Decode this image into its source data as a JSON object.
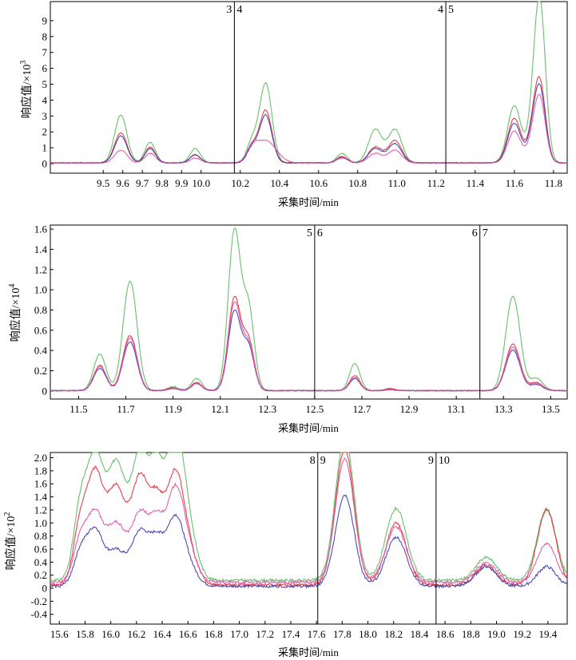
{
  "chart_data": [
    {
      "type": "line",
      "panel": "top",
      "xlabel": "采集时间/min",
      "ylabel_main": "响应值/×10",
      "ylabel_exp": "3",
      "xlim": [
        9.23,
        11.87
      ],
      "ylim": [
        -0.6,
        10.2
      ],
      "xticks": [
        "9.5",
        "9.6",
        "9.7",
        "9.8",
        "9.9",
        "10.0",
        "10.2",
        "10.4",
        "10.6",
        "10.8",
        "11.0",
        "11.2",
        "11.4",
        "11.6",
        "11.8"
      ],
      "yticks": [
        "0",
        "1",
        "2",
        "3",
        "4",
        "5",
        "6",
        "7",
        "8",
        "9"
      ],
      "segments": [
        {
          "x": 10.17,
          "label_left": "3",
          "label_right": "4"
        },
        {
          "x": 11.25,
          "label_left": "4",
          "label_right": "5"
        }
      ],
      "series": [
        {
          "color": "#5cb85c",
          "baseline": 0.05,
          "peaks": [
            [
              9.59,
              3.0,
              0.012
            ],
            [
              9.74,
              1.3,
              0.01
            ],
            [
              9.97,
              0.9,
              0.01
            ],
            [
              10.26,
              1.3,
              0.01
            ],
            [
              10.33,
              5.0,
              0.012
            ],
            [
              10.72,
              0.6,
              0.01
            ],
            [
              10.89,
              2.1,
              0.013
            ],
            [
              10.99,
              2.1,
              0.013
            ],
            [
              11.6,
              3.6,
              0.013
            ],
            [
              11.69,
              1.5,
              0.01
            ],
            [
              11.73,
              10.0,
              0.011
            ]
          ]
        },
        {
          "color": "#e0303a",
          "baseline": 0.05,
          "peaks": [
            [
              9.59,
              1.9,
              0.012
            ],
            [
              9.74,
              1.0,
              0.01
            ],
            [
              9.97,
              0.5,
              0.01
            ],
            [
              10.26,
              1.0,
              0.01
            ],
            [
              10.33,
              3.3,
              0.012
            ],
            [
              10.72,
              0.4,
              0.01
            ],
            [
              10.89,
              1.0,
              0.013
            ],
            [
              10.99,
              1.4,
              0.013
            ],
            [
              11.6,
              2.8,
              0.013
            ],
            [
              11.69,
              1.2,
              0.01
            ],
            [
              11.73,
              5.0,
              0.011
            ]
          ]
        },
        {
          "color": "#3a3aa8",
          "baseline": 0.05,
          "peaks": [
            [
              9.59,
              1.7,
              0.012
            ],
            [
              9.74,
              0.9,
              0.01
            ],
            [
              9.97,
              0.5,
              0.01
            ],
            [
              10.26,
              0.9,
              0.01
            ],
            [
              10.33,
              3.0,
              0.012
            ],
            [
              10.72,
              0.35,
              0.01
            ],
            [
              10.89,
              0.9,
              0.013
            ],
            [
              10.99,
              1.2,
              0.013
            ],
            [
              11.6,
              2.5,
              0.013
            ],
            [
              11.69,
              1.1,
              0.01
            ],
            [
              11.73,
              4.6,
              0.011
            ]
          ]
        },
        {
          "color": "#e050a8",
          "baseline": 0.05,
          "peaks": [
            [
              9.59,
              0.8,
              0.012
            ],
            [
              9.74,
              0.6,
              0.01
            ],
            [
              9.97,
              0.3,
              0.01
            ],
            [
              10.26,
              0.7,
              0.01
            ],
            [
              10.33,
              1.4,
              0.02
            ],
            [
              10.72,
              0.3,
              0.01
            ],
            [
              10.89,
              0.6,
              0.013
            ],
            [
              10.99,
              0.8,
              0.013
            ],
            [
              11.6,
              2.0,
              0.013
            ],
            [
              11.69,
              0.9,
              0.01
            ],
            [
              11.73,
              4.0,
              0.011
            ]
          ]
        }
      ]
    },
    {
      "type": "line",
      "panel": "middle",
      "xlabel": "采集时间/min",
      "ylabel_main": "响应值/×10",
      "ylabel_exp": "4",
      "xlim": [
        11.38,
        13.57
      ],
      "ylim": [
        -0.08,
        1.64
      ],
      "xticks": [
        "11.5",
        "11.7",
        "11.9",
        "12.1",
        "12.3",
        "12.5",
        "12.7",
        "12.9",
        "13.1",
        "13.3",
        "13.5"
      ],
      "yticks": [
        "0",
        "0.2",
        "0.4",
        "0.6",
        "0.8",
        "1.0",
        "1.2",
        "1.4",
        "1.6"
      ],
      "segments": [
        {
          "x": 12.5,
          "label_left": "5",
          "label_right": "6"
        },
        {
          "x": 13.2,
          "label_left": "6",
          "label_right": "7"
        }
      ],
      "series": [
        {
          "color": "#5cb85c",
          "baseline": 0.003,
          "peaks": [
            [
              11.59,
              0.36,
              0.012
            ],
            [
              11.72,
              1.04,
              0.013
            ],
            [
              11.69,
              0.1,
              0.01
            ],
            [
              11.9,
              0.04,
              0.01
            ],
            [
              12.0,
              0.12,
              0.01
            ],
            [
              12.16,
              1.57,
              0.012
            ],
            [
              12.22,
              0.8,
              0.011
            ],
            [
              12.67,
              0.27,
              0.01
            ],
            [
              12.82,
              0.02,
              0.01
            ],
            [
              13.34,
              0.93,
              0.014
            ],
            [
              13.44,
              0.12,
              0.012
            ]
          ]
        },
        {
          "color": "#e0303a",
          "baseline": 0.003,
          "peaks": [
            [
              11.59,
              0.25,
              0.012
            ],
            [
              11.72,
              0.52,
              0.013
            ],
            [
              11.69,
              0.06,
              0.01
            ],
            [
              11.9,
              0.03,
              0.01
            ],
            [
              12.0,
              0.08,
              0.01
            ],
            [
              12.16,
              0.91,
              0.012
            ],
            [
              12.22,
              0.48,
              0.011
            ],
            [
              12.67,
              0.15,
              0.01
            ],
            [
              12.82,
              0.02,
              0.01
            ],
            [
              13.34,
              0.46,
              0.014
            ],
            [
              13.44,
              0.08,
              0.012
            ]
          ]
        },
        {
          "color": "#3a3aa8",
          "baseline": 0.003,
          "peaks": [
            [
              11.59,
              0.22,
              0.012
            ],
            [
              11.72,
              0.46,
              0.013
            ],
            [
              11.69,
              0.05,
              0.01
            ],
            [
              11.9,
              0.02,
              0.01
            ],
            [
              12.0,
              0.07,
              0.01
            ],
            [
              12.16,
              0.78,
              0.012
            ],
            [
              12.22,
              0.42,
              0.011
            ],
            [
              12.67,
              0.12,
              0.01
            ],
            [
              12.82,
              0.01,
              0.01
            ],
            [
              13.34,
              0.4,
              0.014
            ],
            [
              13.44,
              0.06,
              0.012
            ]
          ]
        },
        {
          "color": "#e050a8",
          "baseline": 0.003,
          "peaks": [
            [
              11.59,
              0.24,
              0.012
            ],
            [
              11.72,
              0.5,
              0.013
            ],
            [
              11.69,
              0.05,
              0.01
            ],
            [
              11.9,
              0.02,
              0.01
            ],
            [
              12.0,
              0.07,
              0.01
            ],
            [
              12.16,
              0.86,
              0.012
            ],
            [
              12.22,
              0.44,
              0.011
            ],
            [
              12.67,
              0.13,
              0.01
            ],
            [
              12.82,
              0.01,
              0.01
            ],
            [
              13.34,
              0.43,
              0.014
            ],
            [
              13.44,
              0.07,
              0.012
            ]
          ]
        }
      ]
    },
    {
      "type": "line",
      "panel": "bottom",
      "xlabel": "采集时间/min",
      "ylabel_main": "响应值/×10",
      "ylabel_exp": "2",
      "xlim": [
        15.53,
        19.55
      ],
      "ylim": [
        -0.55,
        2.08
      ],
      "xticks": [
        "15.6",
        "15.8",
        "16.0",
        "16.2",
        "16.4",
        "16.6",
        "16.8",
        "17.0",
        "17.2",
        "17.4",
        "17.6",
        "17.8",
        "18.0",
        "18.2",
        "18.4",
        "18.6",
        "18.8",
        "19.0",
        "19.2",
        "19.4"
      ],
      "yticks": [
        "-0.4",
        "-0.2",
        "0",
        "0.2",
        "0.4",
        "0.6",
        "0.8",
        "1.0",
        "1.2",
        "1.4",
        "1.6",
        "1.8",
        "2.0"
      ],
      "segments": [
        {
          "x": 17.61,
          "label_left": "8",
          "label_right": "9"
        },
        {
          "x": 18.53,
          "label_left": "9",
          "label_right": "10"
        }
      ],
      "series": [
        {
          "color": "#5cb85c",
          "baseline": 0.12,
          "peaks": [
            [
              15.77,
              1.2,
              0.014
            ],
            [
              15.88,
              1.6,
              0.014
            ],
            [
              16.04,
              1.8,
              0.02
            ],
            [
              16.23,
              1.85,
              0.016
            ],
            [
              16.36,
              1.55,
              0.014
            ],
            [
              16.49,
              1.4,
              0.015
            ],
            [
              16.56,
              1.2,
              0.02
            ],
            [
              17.82,
              2.2,
              0.018
            ],
            [
              18.22,
              1.1,
              0.02
            ],
            [
              18.92,
              0.35,
              0.02
            ],
            [
              19.39,
              1.1,
              0.018
            ]
          ]
        },
        {
          "color": "#e0303a",
          "baseline": 0.05,
          "peaks": [
            [
              15.77,
              1.0,
              0.014
            ],
            [
              15.88,
              1.45,
              0.014
            ],
            [
              16.04,
              1.5,
              0.02
            ],
            [
              16.23,
              1.55,
              0.016
            ],
            [
              16.36,
              1.15,
              0.014
            ],
            [
              16.49,
              1.1,
              0.015
            ],
            [
              16.56,
              0.85,
              0.02
            ],
            [
              17.82,
              2.1,
              0.018
            ],
            [
              18.22,
              0.95,
              0.02
            ],
            [
              18.92,
              0.3,
              0.02
            ],
            [
              19.39,
              1.15,
              0.018
            ]
          ]
        },
        {
          "color": "#3a3aa8",
          "baseline": 0.03,
          "peaks": [
            [
              15.77,
              0.55,
              0.014
            ],
            [
              15.88,
              0.75,
              0.014
            ],
            [
              16.04,
              0.55,
              0.02
            ],
            [
              16.23,
              0.8,
              0.016
            ],
            [
              16.36,
              0.65,
              0.014
            ],
            [
              16.49,
              0.7,
              0.015
            ],
            [
              16.56,
              0.5,
              0.02
            ],
            [
              17.82,
              1.4,
              0.018
            ],
            [
              18.22,
              0.75,
              0.02
            ],
            [
              18.92,
              0.3,
              0.02
            ],
            [
              19.39,
              0.3,
              0.018
            ]
          ]
        },
        {
          "color": "#e050a8",
          "baseline": 0.09,
          "peaks": [
            [
              15.77,
              0.7,
              0.014
            ],
            [
              15.88,
              0.9,
              0.014
            ],
            [
              16.04,
              0.9,
              0.02
            ],
            [
              16.23,
              1.0,
              0.016
            ],
            [
              16.36,
              0.85,
              0.014
            ],
            [
              16.49,
              0.9,
              0.015
            ],
            [
              16.56,
              0.75,
              0.02
            ],
            [
              17.82,
              1.9,
              0.018
            ],
            [
              18.22,
              0.85,
              0.02
            ],
            [
              18.92,
              0.3,
              0.02
            ],
            [
              19.39,
              0.6,
              0.018
            ]
          ]
        }
      ]
    }
  ]
}
